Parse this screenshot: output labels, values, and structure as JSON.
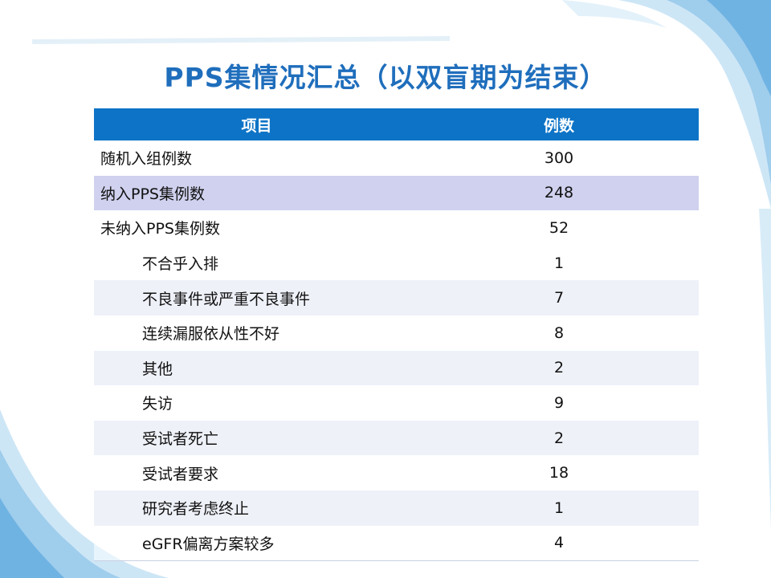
{
  "title": "PPS集情况汇总（以双盲期为结束）",
  "table": {
    "headers": [
      "项目",
      "例数"
    ],
    "rows": [
      {
        "label": "随机入组例数",
        "value": "300",
        "indent": false,
        "highlight": false
      },
      {
        "label": "纳入PPS集例数",
        "value": "248",
        "indent": false,
        "highlight": true
      },
      {
        "label": "未纳入PPS集例数",
        "value": "52",
        "indent": false,
        "highlight": false
      },
      {
        "label": "不合乎入排",
        "value": "1",
        "indent": true,
        "highlight": false
      },
      {
        "label": "不良事件或严重不良事件",
        "value": "7",
        "indent": true,
        "highlight": false
      },
      {
        "label": "连续漏服依从性不好",
        "value": "8",
        "indent": true,
        "highlight": false
      },
      {
        "label": "其他",
        "value": "2",
        "indent": true,
        "highlight": false
      },
      {
        "label": "失访",
        "value": "9",
        "indent": true,
        "highlight": false
      },
      {
        "label": "受试者死亡",
        "value": "2",
        "indent": true,
        "highlight": false
      },
      {
        "label": "受试者要求",
        "value": "18",
        "indent": true,
        "highlight": false
      },
      {
        "label": "研究者考虑终止",
        "value": "1",
        "indent": true,
        "highlight": false
      },
      {
        "label": "eGFR偏离方案较多",
        "value": "4",
        "indent": true,
        "highlight": false
      }
    ]
  },
  "colors": {
    "title": "#1f6ebc",
    "header_bg": "#0d73c6",
    "header_text": "#ffffff",
    "highlight_row": "#cfd1ee",
    "alt_row": "#eef1f8",
    "wave": "#a8d3ef"
  }
}
